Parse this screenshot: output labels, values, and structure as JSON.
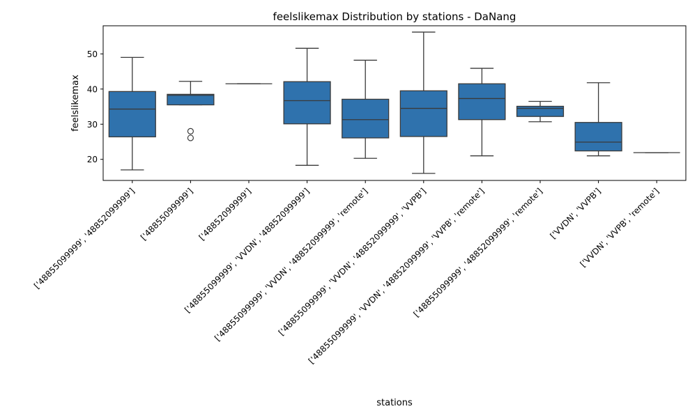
{
  "chart_data": {
    "type": "box",
    "title": "feelslikemax Distribution by stations - DaNang",
    "xlabel": "stations",
    "ylabel": "feelslikemax",
    "ylim": [
      14,
      58
    ],
    "yticks": [
      20,
      30,
      40,
      50
    ],
    "grid": false,
    "legend": "none",
    "box_color": "#2f72ad",
    "line_color": "#3a3a3a",
    "categories": [
      "['48855099999', '48852099999']",
      "['48855099999']",
      "['48852099999']",
      "['48855099999', 'VVDN', '48852099999']",
      "['48855099999', 'VVDN', '48852099999', 'remote']",
      "['48855099999', 'VVDN', '48852099999', 'VVPB']",
      "['48855099999', 'VVDN', '48852099999', 'VVPB', 'remote']",
      "['48855099999', '48852099999', 'remote']",
      "['VVDN', 'VVPB']",
      "['VVDN', 'VVPB', 'remote']"
    ],
    "boxes": [
      {
        "whisker_low": 17.0,
        "q1": 26.4,
        "median": 34.3,
        "q3": 39.3,
        "whisker_high": 49.0,
        "outliers": []
      },
      {
        "whisker_low": 35.5,
        "q1": 35.5,
        "median": 38.2,
        "q3": 38.5,
        "whisker_high": 42.2,
        "outliers": [
          28.0,
          26.1
        ]
      },
      {
        "whisker_low": 41.5,
        "q1": 41.5,
        "median": 41.5,
        "q3": 41.5,
        "whisker_high": 41.5,
        "outliers": []
      },
      {
        "whisker_low": 18.3,
        "q1": 30.1,
        "median": 36.7,
        "q3": 42.1,
        "whisker_high": 51.6,
        "outliers": []
      },
      {
        "whisker_low": 20.3,
        "q1": 26.1,
        "median": 31.3,
        "q3": 37.1,
        "whisker_high": 48.2,
        "outliers": []
      },
      {
        "whisker_low": 16.0,
        "q1": 26.5,
        "median": 34.5,
        "q3": 39.5,
        "whisker_high": 56.2,
        "outliers": []
      },
      {
        "whisker_low": 21.0,
        "q1": 31.3,
        "median": 37.3,
        "q3": 41.5,
        "whisker_high": 45.9,
        "outliers": []
      },
      {
        "whisker_low": 30.7,
        "q1": 32.2,
        "median": 34.5,
        "q3": 35.1,
        "whisker_high": 36.5,
        "outliers": []
      },
      {
        "whisker_low": 21.0,
        "q1": 22.4,
        "median": 24.9,
        "q3": 30.5,
        "whisker_high": 41.8,
        "outliers": []
      },
      {
        "whisker_low": 21.9,
        "q1": 21.9,
        "median": 21.9,
        "q3": 21.9,
        "whisker_high": 21.9,
        "outliers": []
      }
    ]
  }
}
